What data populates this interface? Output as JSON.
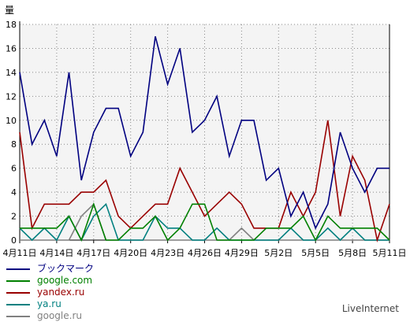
{
  "chart_data": {
    "type": "line",
    "ylabel": "量",
    "ylim": [
      0,
      18
    ],
    "yticks": [
      0,
      2,
      4,
      6,
      8,
      10,
      12,
      14,
      16,
      18
    ],
    "grid": true,
    "legend_position": "bottom-left",
    "x_tick_labels": [
      "4月11日",
      "4月14日",
      "4月17日",
      "4月20日",
      "4月23日",
      "4月26日",
      "4月29日",
      "5月2日",
      "5月5日",
      "5月8日",
      "5月11日"
    ],
    "x_tick_indices": [
      0,
      3,
      6,
      9,
      12,
      15,
      18,
      21,
      24,
      27,
      30
    ],
    "x": [
      "4月11日",
      "4月12日",
      "4月13日",
      "4月14日",
      "4月15日",
      "4月16日",
      "4月17日",
      "4月18日",
      "4月19日",
      "4月20日",
      "4月21日",
      "4月22日",
      "4月23日",
      "4月24日",
      "4月25日",
      "4月26日",
      "4月27日",
      "4月28日",
      "4月29日",
      "4月30日",
      "5月1日",
      "5月2日",
      "5月3日",
      "5月4日",
      "5月5日",
      "5月6日",
      "5月7日",
      "5月8日",
      "5月9日",
      "5月10日",
      "5月11日"
    ],
    "series": [
      {
        "name": "ブックマーク",
        "color": "#000080",
        "values": [
          14,
          8,
          10,
          7,
          14,
          5,
          9,
          11,
          11,
          7,
          9,
          17,
          13,
          16,
          9,
          10,
          12,
          7,
          10,
          10,
          5,
          6,
          2,
          4,
          1,
          3,
          9,
          6,
          4,
          6,
          6
        ]
      },
      {
        "name": "google.com",
        "color": "#008000",
        "values": [
          1,
          1,
          1,
          1,
          2,
          0,
          3,
          0,
          0,
          1,
          1,
          2,
          0,
          1,
          3,
          3,
          0,
          0,
          0,
          0,
          1,
          1,
          1,
          2,
          0,
          2,
          1,
          1,
          1,
          1,
          0
        ]
      },
      {
        "name": "yandex.ru",
        "color": "#990000",
        "values": [
          9,
          1,
          3,
          3,
          3,
          4,
          4,
          5,
          2,
          1,
          2,
          3,
          3,
          6,
          4,
          2,
          3,
          4,
          3,
          1,
          1,
          1,
          4,
          2,
          4,
          10,
          2,
          7,
          5,
          0,
          3
        ]
      },
      {
        "name": "ya.ru",
        "color": "#008080",
        "values": [
          1,
          0,
          1,
          0,
          2,
          0,
          2,
          3,
          0,
          0,
          0,
          2,
          1,
          1,
          0,
          0,
          1,
          0,
          0,
          0,
          0,
          0,
          1,
          0,
          0,
          1,
          0,
          1,
          0,
          0,
          0
        ]
      },
      {
        "name": "google.ru",
        "color": "#808080",
        "values": [
          0,
          0,
          0,
          0,
          0,
          2,
          3,
          0,
          0,
          0,
          0,
          0,
          0,
          0,
          0,
          0,
          0,
          0,
          1,
          0,
          0,
          0,
          0,
          0,
          0,
          0,
          0,
          0,
          0,
          0,
          0
        ]
      }
    ]
  },
  "footer": {
    "brand": "LiveInternet"
  }
}
